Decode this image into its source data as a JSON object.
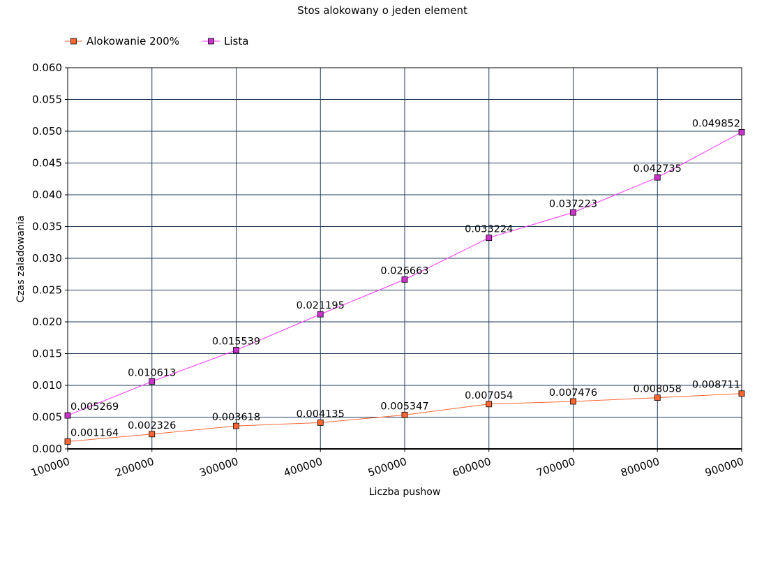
{
  "chart_data": {
    "type": "line",
    "title": "Stos alokowany o jeden element",
    "xlabel": "Liczba pushow",
    "ylabel": "Czas zaladowania",
    "categories": [
      "100000",
      "200000",
      "300000",
      "400000",
      "500000",
      "600000",
      "700000",
      "800000",
      "900000"
    ],
    "ylim": [
      0,
      0.06
    ],
    "yticks": [
      "0.000",
      "0.005",
      "0.010",
      "0.015",
      "0.020",
      "0.025",
      "0.030",
      "0.035",
      "0.040",
      "0.045",
      "0.050",
      "0.055",
      "0.060"
    ],
    "grid": true,
    "legend_position": "top-left",
    "series": [
      {
        "name": "Alokowanie 200%",
        "color": "#ff6633",
        "marker_fill": "#ff6633",
        "values": [
          0.001164,
          0.002326,
          0.003618,
          0.004135,
          0.005347,
          0.007054,
          0.007476,
          0.008058,
          0.008711
        ],
        "labels": [
          "0.001164",
          "0.002326",
          "0.003618",
          "0.004135",
          "0.005347",
          "0.007054",
          "0.007476",
          "0.008058",
          "0.008711"
        ]
      },
      {
        "name": "Lista",
        "color": "#ff33ff",
        "marker_fill": "#cc33cc",
        "values": [
          0.005269,
          0.010613,
          0.015539,
          0.021195,
          0.026663,
          0.033224,
          0.037223,
          0.042735,
          0.049852
        ],
        "labels": [
          "0.005269",
          "0.010613",
          "0.015539",
          "0.021195",
          "0.026663",
          "0.033224",
          "0.037223",
          "0.042735",
          "0.049852"
        ]
      }
    ]
  }
}
